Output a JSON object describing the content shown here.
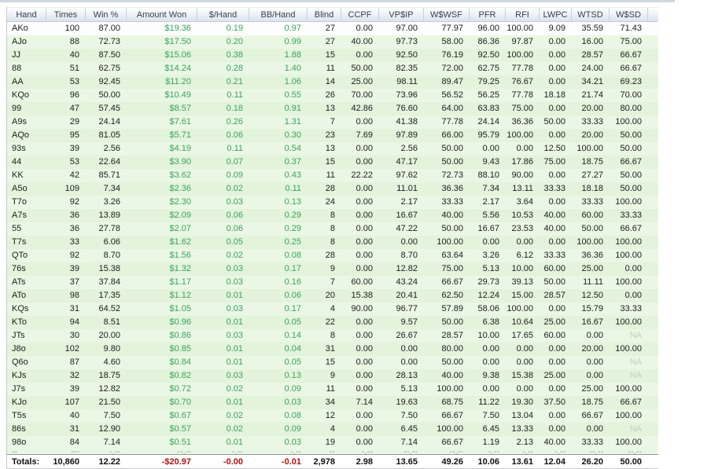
{
  "colors": {
    "positive_money": "#3aa35c",
    "negative_money": "#b01212",
    "row_tint_a": "#eaf7e4",
    "row_tint_b": "#e3f3dc",
    "na_text": "#bed4be",
    "header_text": "#38404c"
  },
  "table": {
    "columns": [
      {
        "label": "Hand"
      },
      {
        "label": "Times"
      },
      {
        "label": "Win %"
      },
      {
        "label": "Amount Won"
      },
      {
        "label": "$/Hand"
      },
      {
        "label": "BB/Hand"
      },
      {
        "label": "Blind"
      },
      {
        "label": "CCPF"
      },
      {
        "label": "VP$IP"
      },
      {
        "label": "W$WSF"
      },
      {
        "label": "PFR"
      },
      {
        "label": "RFI"
      },
      {
        "label": "LWPC"
      },
      {
        "label": "WTSD"
      },
      {
        "label": "W$SD"
      }
    ],
    "rows": [
      [
        "AKo",
        "100",
        "87.00",
        "$19.36",
        "0.19",
        "0.97",
        "27",
        "0.00",
        "97.00",
        "77.97",
        "96.00",
        "100.00",
        "9.09",
        "35.59",
        "71.43"
      ],
      [
        "AJo",
        "88",
        "72.73",
        "$17.50",
        "0.20",
        "0.99",
        "27",
        "40.00",
        "97.73",
        "58.00",
        "86.36",
        "97.87",
        "0.00",
        "16.00",
        "75.00"
      ],
      [
        "JJ",
        "40",
        "87.50",
        "$15.06",
        "0.38",
        "1.88",
        "15",
        "0.00",
        "92.50",
        "76.19",
        "92.50",
        "100.00",
        "0.00",
        "28.57",
        "66.67"
      ],
      [
        "88",
        "51",
        "62.75",
        "$14.24",
        "0.28",
        "1.40",
        "11",
        "50.00",
        "82.35",
        "72.00",
        "62.75",
        "77.78",
        "0.00",
        "24.00",
        "66.67"
      ],
      [
        "AA",
        "53",
        "92.45",
        "$11.20",
        "0.21",
        "1.06",
        "14",
        "25.00",
        "98.11",
        "89.47",
        "79.25",
        "76.67",
        "0.00",
        "34.21",
        "69.23"
      ],
      [
        "KQo",
        "96",
        "50.00",
        "$10.49",
        "0.11",
        "0.55",
        "26",
        "70.00",
        "73.96",
        "56.52",
        "56.25",
        "77.78",
        "18.18",
        "21.74",
        "70.00"
      ],
      [
        "99",
        "47",
        "57.45",
        "$8.57",
        "0.18",
        "0.91",
        "13",
        "42.86",
        "76.60",
        "64.00",
        "63.83",
        "75.00",
        "0.00",
        "20.00",
        "80.00"
      ],
      [
        "A9s",
        "29",
        "24.14",
        "$7.61",
        "0.26",
        "1.31",
        "7",
        "0.00",
        "41.38",
        "77.78",
        "24.14",
        "36.36",
        "50.00",
        "33.33",
        "100.00"
      ],
      [
        "AQo",
        "95",
        "81.05",
        "$5.71",
        "0.06",
        "0.30",
        "23",
        "7.69",
        "97.89",
        "66.00",
        "95.79",
        "100.00",
        "0.00",
        "20.00",
        "50.00"
      ],
      [
        "93s",
        "39",
        "2.56",
        "$4.19",
        "0.11",
        "0.54",
        "13",
        "0.00",
        "2.56",
        "50.00",
        "0.00",
        "0.00",
        "12.50",
        "100.00",
        "50.00"
      ],
      [
        "44",
        "53",
        "22.64",
        "$3.90",
        "0.07",
        "0.37",
        "15",
        "0.00",
        "47.17",
        "50.00",
        "9.43",
        "17.86",
        "75.00",
        "18.75",
        "66.67"
      ],
      [
        "KK",
        "42",
        "85.71",
        "$3.62",
        "0.09",
        "0.43",
        "11",
        "22.22",
        "97.62",
        "72.73",
        "88.10",
        "90.00",
        "0.00",
        "27.27",
        "50.00"
      ],
      [
        "A5o",
        "109",
        "7.34",
        "$2.36",
        "0.02",
        "0.11",
        "28",
        "0.00",
        "11.01",
        "36.36",
        "7.34",
        "13.11",
        "33.33",
        "18.18",
        "50.00"
      ],
      [
        "T7o",
        "92",
        "3.26",
        "$2.30",
        "0.03",
        "0.13",
        "24",
        "0.00",
        "2.17",
        "33.33",
        "2.17",
        "3.64",
        "0.00",
        "33.33",
        "100.00"
      ],
      [
        "A7s",
        "36",
        "13.89",
        "$2.09",
        "0.06",
        "0.29",
        "8",
        "0.00",
        "16.67",
        "40.00",
        "5.56",
        "10.53",
        "40.00",
        "60.00",
        "33.33"
      ],
      [
        "55",
        "36",
        "27.78",
        "$2.07",
        "0.06",
        "0.29",
        "8",
        "0.00",
        "47.22",
        "50.00",
        "16.67",
        "23.53",
        "40.00",
        "50.00",
        "66.67"
      ],
      [
        "T7s",
        "33",
        "6.06",
        "$1.62",
        "0.05",
        "0.25",
        "8",
        "0.00",
        "0.00",
        "100.00",
        "0.00",
        "0.00",
        "0.00",
        "100.00",
        "100.00"
      ],
      [
        "QTo",
        "92",
        "8.70",
        "$1.56",
        "0.02",
        "0.08",
        "28",
        "0.00",
        "8.70",
        "63.64",
        "3.26",
        "6.12",
        "33.33",
        "36.36",
        "100.00"
      ],
      [
        "76s",
        "39",
        "15.38",
        "$1.32",
        "0.03",
        "0.17",
        "9",
        "0.00",
        "12.82",
        "75.00",
        "5.13",
        "10.00",
        "60.00",
        "25.00",
        "0.00"
      ],
      [
        "ATs",
        "37",
        "37.84",
        "$1.17",
        "0.03",
        "0.16",
        "7",
        "60.00",
        "43.24",
        "66.67",
        "29.73",
        "39.13",
        "50.00",
        "11.11",
        "100.00"
      ],
      [
        "ATo",
        "98",
        "17.35",
        "$1.12",
        "0.01",
        "0.06",
        "20",
        "15.38",
        "20.41",
        "62.50",
        "12.24",
        "15.00",
        "28.57",
        "12.50",
        "0.00"
      ],
      [
        "KQs",
        "31",
        "64.52",
        "$1.05",
        "0.03",
        "0.17",
        "4",
        "90.00",
        "96.77",
        "57.89",
        "58.06",
        "100.00",
        "0.00",
        "15.79",
        "33.33"
      ],
      [
        "KTo",
        "94",
        "8.51",
        "$0.96",
        "0.01",
        "0.05",
        "22",
        "0.00",
        "9.57",
        "50.00",
        "6.38",
        "10.64",
        "25.00",
        "16.67",
        "100.00"
      ],
      [
        "JTs",
        "30",
        "20.00",
        "$0.86",
        "0.03",
        "0.14",
        "8",
        "0.00",
        "26.67",
        "28.57",
        "10.00",
        "17.65",
        "60.00",
        "0.00",
        "NA"
      ],
      [
        "J8o",
        "102",
        "9.80",
        "$0.85",
        "0.01",
        "0.04",
        "31",
        "0.00",
        "0.00",
        "80.00",
        "0.00",
        "0.00",
        "0.00",
        "20.00",
        "100.00"
      ],
      [
        "Q6o",
        "87",
        "4.60",
        "$0.84",
        "0.01",
        "0.05",
        "15",
        "0.00",
        "0.00",
        "50.00",
        "0.00",
        "0.00",
        "0.00",
        "0.00",
        "NA"
      ],
      [
        "KJs",
        "32",
        "18.75",
        "$0.82",
        "0.03",
        "0.13",
        "9",
        "0.00",
        "28.13",
        "40.00",
        "9.38",
        "15.38",
        "25.00",
        "0.00",
        "NA"
      ],
      [
        "J7s",
        "39",
        "12.82",
        "$0.72",
        "0.02",
        "0.09",
        "11",
        "0.00",
        "5.13",
        "100.00",
        "0.00",
        "0.00",
        "0.00",
        "25.00",
        "100.00"
      ],
      [
        "KJo",
        "107",
        "21.50",
        "$0.70",
        "0.01",
        "0.03",
        "34",
        "7.14",
        "19.63",
        "68.75",
        "11.22",
        "19.30",
        "37.50",
        "18.75",
        "66.67"
      ],
      [
        "T5s",
        "40",
        "7.50",
        "$0.67",
        "0.02",
        "0.08",
        "12",
        "0.00",
        "7.50",
        "66.67",
        "7.50",
        "13.04",
        "0.00",
        "66.67",
        "100.00"
      ],
      [
        "86s",
        "31",
        "12.90",
        "$0.57",
        "0.02",
        "0.09",
        "4",
        "0.00",
        "6.45",
        "100.00",
        "6.45",
        "13.33",
        "0.00",
        "0.00",
        "NA"
      ],
      [
        "98o",
        "84",
        "7.14",
        "$0.51",
        "0.01",
        "0.03",
        "19",
        "0.00",
        "7.14",
        "66.67",
        "1.19",
        "2.13",
        "40.00",
        "33.33",
        "100.00"
      ]
    ],
    "clipped_row": [
      "--",
      "---",
      "-.--",
      "--.--",
      "-.--",
      "-.--",
      "--",
      "-.--",
      "--.--",
      "--.--",
      "-.--",
      "-.--",
      "-.--",
      "--.--",
      "--.--"
    ],
    "totals": [
      "Totals:",
      "10,860",
      "12.22",
      "-$20.97",
      "-0.00",
      "-0.01",
      "2,978",
      "2.98",
      "13.65",
      "49.26",
      "10.06",
      "13.61",
      "12.04",
      "26.20",
      "50.00"
    ]
  }
}
